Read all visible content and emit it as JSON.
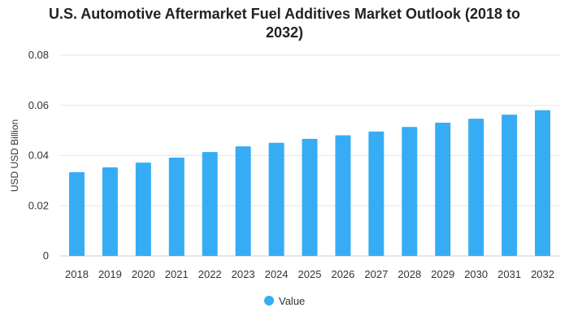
{
  "chart_data": {
    "type": "bar",
    "title": "U.S. Automotive Aftermarket Fuel Additives Market Outlook (2018 to 2032)",
    "xlabel": "",
    "ylabel": "USD USD Billion",
    "categories": [
      "2018",
      "2019",
      "2020",
      "2021",
      "2022",
      "2023",
      "2024",
      "2025",
      "2026",
      "2027",
      "2028",
      "2029",
      "2030",
      "2031",
      "2032"
    ],
    "series": [
      {
        "name": "Value",
        "values": [
          0.0334,
          0.0353,
          0.0372,
          0.0392,
          0.0414,
          0.0437,
          0.0451,
          0.0467,
          0.0481,
          0.0496,
          0.0514,
          0.0531,
          0.0547,
          0.0563,
          0.0581
        ]
      }
    ],
    "ylim": [
      0,
      0.08
    ],
    "yticks": [
      "0",
      "0.02",
      "0.04",
      "0.06",
      "0.08"
    ],
    "grid": true,
    "legend_position": "bottom",
    "colors": {
      "bar": "#36ACF5",
      "grid": "#e6e6e6",
      "axis_text": "#333333"
    }
  }
}
